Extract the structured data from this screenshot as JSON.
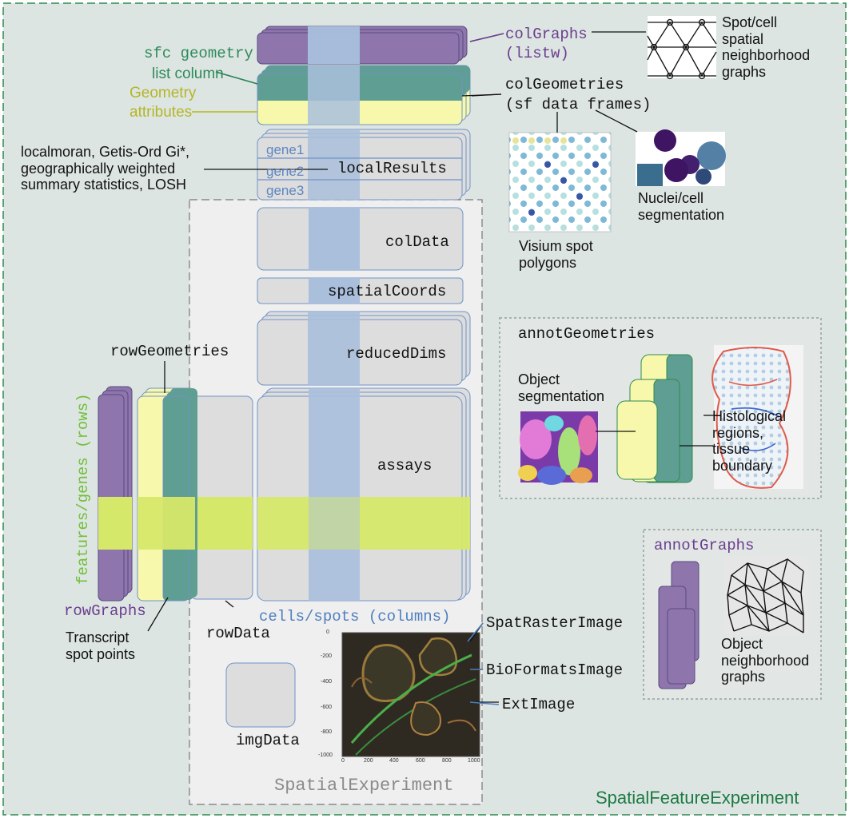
{
  "outer_title": "SpatialFeatureExperiment",
  "inner_title": "SpatialExperiment",
  "components": {
    "colGraphs_name": "colGraphs",
    "colGraphs_type": "(listw)",
    "sfc_geometry_label_1": "sfc geometry",
    "sfc_geometry_label_2": "list column",
    "geometry_attributes_1": "Geometry",
    "geometry_attributes_2": "attributes",
    "colGeometries_name": "colGeometries",
    "colGeometries_type": "(sf data frames)",
    "localResults": "localResults",
    "genes": [
      "gene1",
      "gene2",
      "gene3"
    ],
    "colData": "colData",
    "spatialCoords": "spatialCoords",
    "reducedDims": "reducedDims",
    "assays": "assays",
    "rowGeometries": "rowGeometries",
    "rowGraphs": "rowGraphs",
    "rowData": "rowData",
    "features_axis": "features/genes (rows)",
    "cells_axis": "cells/spots (columns)",
    "imgData": "imgData",
    "spatRaster": "SpatRasterImage",
    "bioFormats": "BioFormatsImage",
    "extImage": "ExtImage",
    "annotGeometries": "annotGeometries",
    "annotGraphs": "annotGraphs"
  },
  "annotations": {
    "spot_cell_graphs": [
      "Spot/cell",
      "spatial",
      "neighborhood",
      "graphs"
    ],
    "local_stats": [
      "localmoran, Getis-Ord Gi*,",
      "geographically weighted",
      "summary statistics, LOSH"
    ],
    "visium": [
      "Visium spot",
      "polygons"
    ],
    "nuclei": [
      "Nuclei/cell",
      "segmentation"
    ],
    "object_segmentation": [
      "Object",
      "segmentation"
    ],
    "histological": [
      "Histological",
      "regions,",
      "tissue",
      "boundary"
    ],
    "transcript": [
      "Transcript",
      "spot points"
    ],
    "object_neighborhood": [
      "Object",
      "neighborhood",
      "graphs"
    ]
  },
  "image_axes": {
    "y_ticks": [
      "0",
      "-200",
      "-400",
      "-600",
      "-800",
      "-1000"
    ],
    "x_ticks": [
      "0",
      "200",
      "400",
      "600",
      "800",
      "1000"
    ]
  },
  "colors": {
    "background": "#dde5e2",
    "outer_border": "#2f8a4e",
    "outer_title": "#1d7a43",
    "inner_fill": "#efefef",
    "purple": "#8e76ac",
    "purple_text": "#6a3d8f",
    "teal": "#5f9e92",
    "sfc_text": "#2e8a5a",
    "yellow": "#f8f8ac",
    "geom_attr_text": "#b5b528",
    "column_band": "#a9bfdc",
    "row_band": "#d6e86a",
    "box_grey": "#dddddd",
    "box_border": "#6f93c8",
    "gene_text": "#5c86c2",
    "cells_text": "#4f7fbf",
    "features_text": "#72bf3a"
  }
}
